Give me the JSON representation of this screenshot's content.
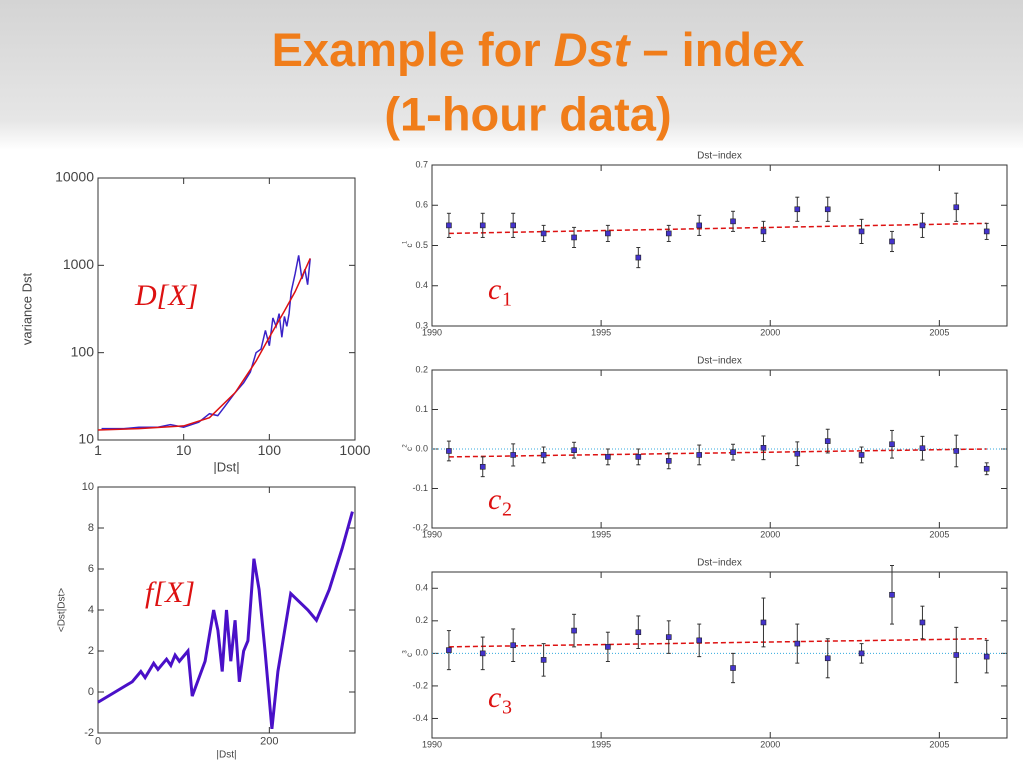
{
  "title_parts": [
    "Example for ",
    "Dst",
    " – index"
  ],
  "subtitle": "(1-hour data)",
  "chart_data": [
    {
      "type": "line",
      "log_x": true,
      "log_y": true,
      "xlim": [
        1,
        1000
      ],
      "ylim": [
        10,
        10000
      ],
      "xticks": [
        1,
        10,
        100,
        1000
      ],
      "yticks": [
        10,
        100,
        1000,
        10000
      ],
      "xlabel": "|Dst|",
      "ylabel": "variance Dst",
      "annotation": "D[X]",
      "series": [
        {
          "color": "#3a22c8",
          "x": [
            1.1,
            2,
            3,
            5,
            7,
            10,
            15,
            20,
            25,
            30,
            40,
            50,
            60,
            70,
            80,
            90,
            100,
            110,
            120,
            130,
            140,
            150,
            160,
            170,
            180,
            200,
            220,
            240,
            260,
            280,
            300
          ],
          "values": [
            13.5,
            13.5,
            14,
            14,
            15,
            14,
            16,
            20,
            19,
            24,
            35,
            45,
            60,
            100,
            110,
            180,
            120,
            250,
            200,
            280,
            150,
            260,
            200,
            280,
            500,
            800,
            1300,
            700,
            900,
            600,
            1200
          ]
        },
        {
          "color": "#dd1111",
          "x": [
            1,
            3,
            10,
            20,
            40,
            70,
            100,
            150,
            200,
            300
          ],
          "values": [
            13,
            13.5,
            14.5,
            18,
            35,
            80,
            150,
            300,
            500,
            1200
          ]
        }
      ]
    },
    {
      "type": "line",
      "xlim": [
        0,
        300
      ],
      "ylim": [
        -2,
        10
      ],
      "xticks": [
        0,
        200
      ],
      "yticks": [
        -2,
        0,
        2,
        4,
        6,
        8,
        10
      ],
      "xlabel": "|Dst|",
      "ylabel": "<Dst|Dst>",
      "annotation": "f[X]",
      "series": [
        {
          "color": "#4a10c8",
          "x": [
            0,
            20,
            40,
            50,
            55,
            65,
            70,
            80,
            85,
            90,
            95,
            105,
            110,
            125,
            135,
            140,
            145,
            150,
            155,
            160,
            165,
            170,
            175,
            182,
            188,
            195,
            203,
            210,
            225,
            245,
            255,
            270,
            285,
            297
          ],
          "values": [
            -0.5,
            0,
            0.5,
            1,
            0.7,
            1.4,
            1.1,
            1.6,
            1.3,
            1.8,
            1.5,
            2,
            -0.2,
            1.5,
            4,
            3,
            1,
            4,
            1.5,
            3.5,
            0.5,
            2,
            2.5,
            6.5,
            5,
            2,
            -1.8,
            1,
            4.8,
            4,
            3.5,
            5,
            7,
            8.8
          ]
        }
      ]
    },
    {
      "type": "errorbar",
      "title": "Dst−index",
      "xlim": [
        1990,
        2007
      ],
      "ylim": [
        0.3,
        0.7
      ],
      "xticks": [
        1990,
        1995,
        2000,
        2005
      ],
      "yticks": [
        0.3,
        0.4,
        0.5,
        0.6,
        0.7
      ],
      "ylabel": "c",
      "ylabel_sub": "1",
      "annotation": "c",
      "annotation_sub": "1",
      "color": "#4433cc",
      "x": [
        1990.5,
        1991.5,
        1992.4,
        1993.3,
        1994.2,
        1995.2,
        1996.1,
        1997.0,
        1997.9,
        1998.9,
        1999.8,
        2000.8,
        2001.7,
        2002.7,
        2003.6,
        2004.5,
        2005.5,
        2006.4
      ],
      "values": [
        0.55,
        0.55,
        0.55,
        0.53,
        0.52,
        0.53,
        0.47,
        0.53,
        0.55,
        0.56,
        0.535,
        0.59,
        0.59,
        0.535,
        0.51,
        0.55,
        0.595,
        0.535
      ],
      "errors": [
        0.03,
        0.03,
        0.03,
        0.02,
        0.025,
        0.02,
        0.025,
        0.02,
        0.025,
        0.025,
        0.025,
        0.03,
        0.03,
        0.03,
        0.025,
        0.03,
        0.035,
        0.02
      ],
      "trend": {
        "color": "#dd1111",
        "x": [
          1990.5,
          2006.4
        ],
        "values": [
          0.53,
          0.555
        ]
      }
    },
    {
      "type": "errorbar",
      "title": "Dst−index",
      "xlim": [
        1990,
        2007
      ],
      "ylim": [
        -0.2,
        0.2
      ],
      "xticks": [
        1990,
        1995,
        2000,
        2005
      ],
      "yticks": [
        -0.2,
        -0.1,
        {
          "value": 0,
          "label": "0.0"
        },
        0.1,
        0.2
      ],
      "ylabel": "c",
      "ylabel_sub": "2",
      "annotation": "c",
      "annotation_sub": "2",
      "color": "#4433cc",
      "hline": 0,
      "x": [
        1990.5,
        1991.5,
        1992.4,
        1993.3,
        1994.2,
        1995.2,
        1996.1,
        1997.0,
        1997.9,
        1998.9,
        1999.8,
        2000.8,
        2001.7,
        2002.7,
        2003.6,
        2004.5,
        2005.5,
        2006.4
      ],
      "values": [
        -0.005,
        -0.045,
        -0.015,
        -0.015,
        -0.003,
        -0.02,
        -0.02,
        -0.03,
        -0.015,
        -0.008,
        0.003,
        -0.012,
        0.02,
        -0.015,
        0.012,
        0.002,
        -0.005,
        -0.05
      ],
      "errors": [
        0.025,
        0.025,
        0.028,
        0.02,
        0.02,
        0.02,
        0.02,
        0.02,
        0.025,
        0.02,
        0.03,
        0.03,
        0.03,
        0.02,
        0.035,
        0.03,
        0.04,
        0.015
      ],
      "trend": {
        "color": "#dd1111",
        "x": [
          1990.5,
          2006.4
        ],
        "values": [
          -0.02,
          0.0
        ]
      }
    },
    {
      "type": "errorbar",
      "title": "Dst−index",
      "xlim": [
        1990,
        2007
      ],
      "ylim": [
        -0.52,
        0.5
      ],
      "xticks": [
        1990,
        1995,
        2000,
        2005
      ],
      "yticks": [
        -0.4,
        -0.2,
        {
          "value": 0,
          "label": "0.0"
        },
        0.2,
        0.4
      ],
      "ylabel": "c",
      "ylabel_sub": "3",
      "annotation": "c",
      "annotation_sub": "3",
      "color": "#4433cc",
      "hline": 0,
      "x": [
        1990.5,
        1991.5,
        1992.4,
        1993.3,
        1994.2,
        1995.2,
        1996.1,
        1997.0,
        1997.9,
        1998.9,
        1999.8,
        2000.8,
        2001.7,
        2002.7,
        2003.6,
        2004.5,
        2005.5,
        2006.4
      ],
      "values": [
        0.02,
        0.0,
        0.05,
        -0.04,
        0.14,
        0.04,
        0.13,
        0.1,
        0.08,
        -0.09,
        0.19,
        0.06,
        -0.03,
        0.0,
        0.36,
        0.19,
        -0.01,
        -0.02
      ],
      "errors": [
        0.12,
        0.1,
        0.1,
        0.1,
        0.1,
        0.09,
        0.1,
        0.1,
        0.1,
        0.09,
        0.15,
        0.12,
        0.12,
        0.06,
        0.18,
        0.1,
        0.17,
        0.1
      ],
      "trend": {
        "color": "#dd1111",
        "x": [
          1990.5,
          2006.4
        ],
        "values": [
          0.04,
          0.09
        ]
      }
    }
  ]
}
